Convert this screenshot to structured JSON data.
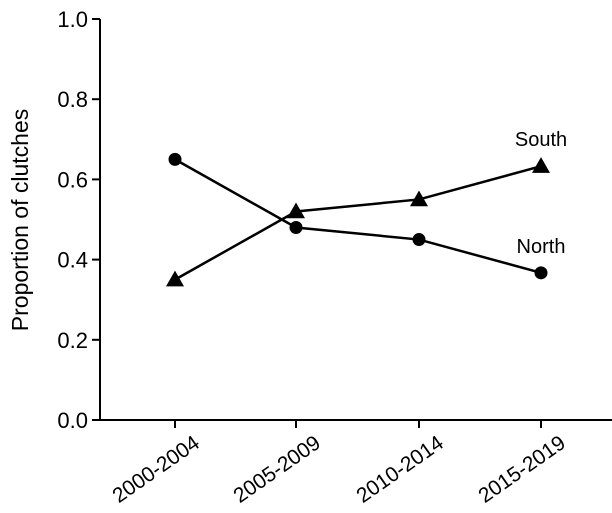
{
  "chart_data": {
    "type": "line",
    "title": "",
    "xlabel": "",
    "ylabel": "Proportion of clutches",
    "categories": [
      "2000-2004",
      "2005-2009",
      "2010-2014",
      "2015-2019"
    ],
    "ylim": [
      0.0,
      1.0
    ],
    "yticks": [
      "0.0",
      "0.2",
      "0.4",
      "0.6",
      "0.8",
      "1.0"
    ],
    "grid": false,
    "legend": "none",
    "series": [
      {
        "name": "North",
        "marker": "circle",
        "color": "#000000",
        "values": [
          0.65,
          0.48,
          0.45,
          0.367
        ]
      },
      {
        "name": "South",
        "marker": "triangle",
        "color": "#000000",
        "values": [
          0.35,
          0.52,
          0.55,
          0.633
        ]
      }
    ]
  }
}
